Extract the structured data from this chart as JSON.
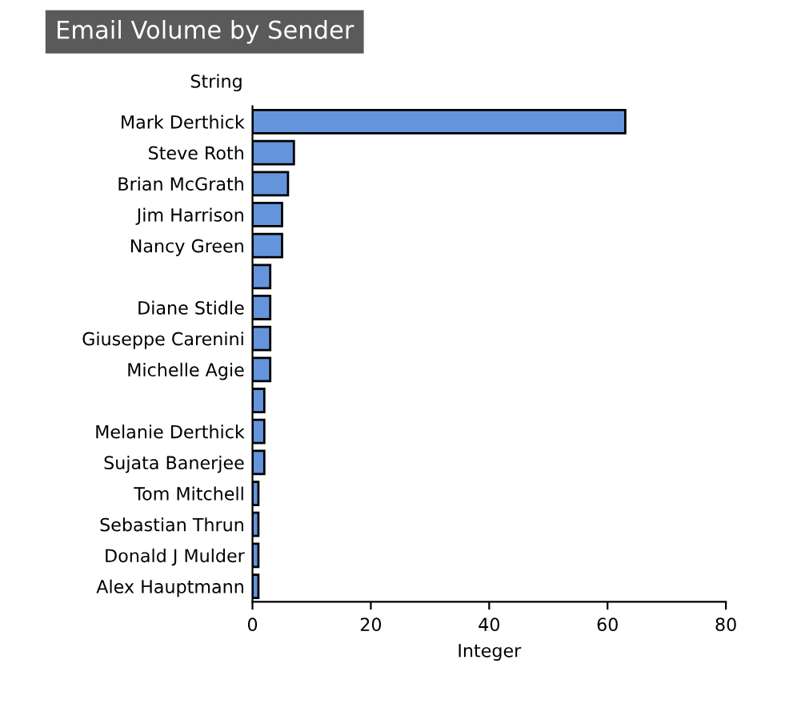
{
  "chart_data": {
    "type": "bar",
    "orientation": "horizontal",
    "title": "Email Volume by Sender",
    "xlabel": "Integer",
    "ylabel": "String",
    "categories": [
      "Mark Derthick",
      "Steve Roth",
      "Brian McGrath",
      "Jim Harrison",
      "Nancy Green",
      null,
      "Diane Stidle",
      "Giuseppe Carenini",
      "Michelle Agie",
      null,
      "Melanie Derthick",
      "Sujata Banerjee",
      "Tom Mitchell",
      "Sebastian Thrun",
      "Donald J Mulder",
      "Alex Hauptmann"
    ],
    "values": [
      63,
      7,
      6,
      5,
      5,
      3,
      3,
      3,
      3,
      2,
      2,
      2,
      1,
      1,
      1,
      1
    ],
    "color": "#6495dc",
    "xlim": [
      0,
      80
    ],
    "xticks": [
      0,
      20,
      40,
      60,
      80
    ],
    "grid": false,
    "legend": false
  }
}
